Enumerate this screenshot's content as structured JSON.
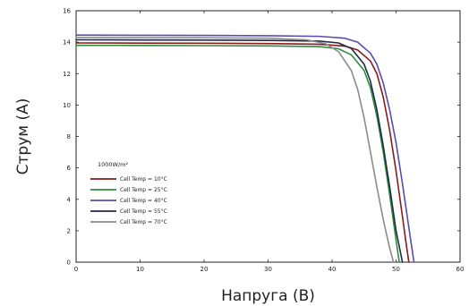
{
  "chart_data": {
    "type": "line",
    "title": "",
    "xlabel": "Напруга (В)",
    "ylabel": "Струм (А)",
    "xlim": [
      0,
      60
    ],
    "ylim": [
      0,
      16
    ],
    "xticks": [
      0,
      10,
      20,
      30,
      40,
      50,
      60
    ],
    "yticks": [
      0,
      2,
      4,
      6,
      8,
      10,
      12,
      14,
      16
    ],
    "grid": false,
    "legend_title": "1000W/m²",
    "legend_position": "left-middle",
    "series": [
      {
        "name": "Cell Temp = 10°C",
        "color": "#8B1A1A",
        "x": [
          0,
          10,
          20,
          30,
          38,
          42,
          44,
          46,
          47,
          48,
          49,
          50,
          51,
          51.5,
          52
        ],
        "y": [
          13.95,
          13.94,
          13.93,
          13.91,
          13.87,
          13.75,
          13.5,
          12.8,
          12.0,
          10.5,
          8.4,
          5.8,
          2.9,
          1.4,
          0
        ]
      },
      {
        "name": "Cell Temp = 25°C",
        "color": "#2E8B3E",
        "x": [
          0,
          10,
          20,
          30,
          38,
          41,
          43,
          45,
          46,
          47,
          48,
          49,
          50,
          50.5
        ],
        "y": [
          13.8,
          13.79,
          13.78,
          13.76,
          13.72,
          13.58,
          13.2,
          12.2,
          11.1,
          9.3,
          7.0,
          4.3,
          1.4,
          0
        ]
      },
      {
        "name": "Cell Temp = 40°C",
        "color": "#5A4BB0",
        "x": [
          0,
          10,
          20,
          30,
          38,
          42,
          44,
          46,
          47,
          48,
          49,
          50,
          51,
          52,
          52.8
        ],
        "y": [
          14.45,
          14.44,
          14.43,
          14.41,
          14.37,
          14.25,
          14.0,
          13.3,
          12.6,
          11.4,
          9.7,
          7.6,
          5.0,
          2.2,
          0
        ]
      },
      {
        "name": "Cell Temp = 55°C",
        "color": "#1F2A44",
        "x": [
          0,
          10,
          20,
          30,
          38,
          41,
          43,
          45,
          46,
          47,
          48,
          49,
          50,
          51
        ],
        "y": [
          14.15,
          14.14,
          14.13,
          14.11,
          14.07,
          13.95,
          13.6,
          12.6,
          11.5,
          9.7,
          7.4,
          4.8,
          2.0,
          0
        ]
      },
      {
        "name": "Cell Temp = 70°C",
        "color": "#8C8C8C",
        "x": [
          0,
          10,
          20,
          30,
          36,
          39,
          41,
          43,
          44,
          45,
          46,
          47,
          48,
          49,
          49.6
        ],
        "y": [
          14.3,
          14.29,
          14.28,
          14.25,
          14.15,
          13.9,
          13.4,
          12.2,
          11.0,
          9.2,
          7.0,
          4.8,
          2.7,
          0.9,
          0
        ]
      }
    ]
  }
}
